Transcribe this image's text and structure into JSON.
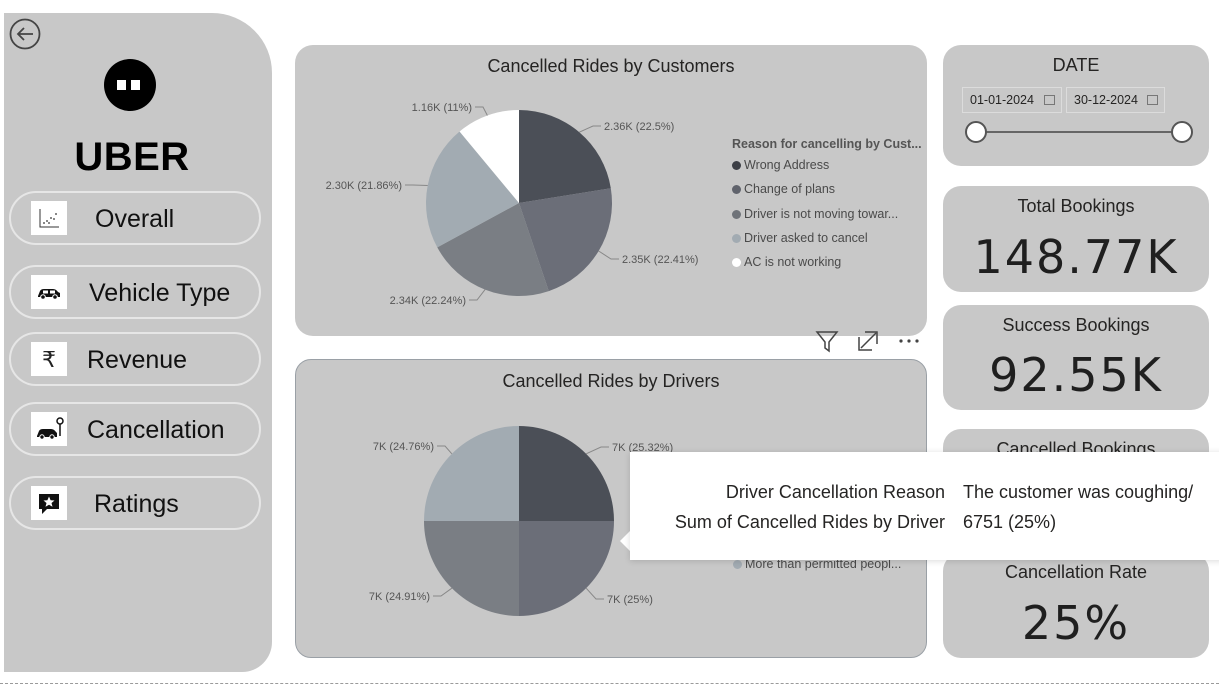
{
  "nav": {
    "items": [
      {
        "label": "Overall",
        "icon": "scatter-chart-icon"
      },
      {
        "label": "Vehicle Type",
        "icon": "car-icon"
      },
      {
        "label": "Revenue",
        "icon": "rupee-icon"
      },
      {
        "label": "Cancellation",
        "icon": "car-cancel-icon"
      },
      {
        "label": "Ratings",
        "icon": "rating-star-icon"
      }
    ],
    "brand": "UBER"
  },
  "customers_chart": {
    "title": "Cancelled Rides by Customers",
    "legend_title": "Reason for cancelling by Cust...",
    "legend": [
      "Wrong Address",
      "Change of plans",
      "Driver is not moving towar...",
      "Driver asked to cancel",
      "AC is not working"
    ],
    "labels": [
      "2.36K (22.5%)",
      "2.35K (22.41%)",
      "2.34K (22.24%)",
      "2.30K (21.86%)",
      "1.16K (11%)"
    ]
  },
  "drivers_chart": {
    "title": "Cancelled Rides by Drivers",
    "legend_visible": [
      "More than permitted peopl..."
    ],
    "labels": [
      "7K (25.32%)",
      "7K (25%)",
      "7K (24.91%)",
      "7K (24.76%)"
    ]
  },
  "chart_data": [
    {
      "type": "pie",
      "title": "Cancelled Rides by Customers",
      "legend_title": "Reason for cancelling by Cust...",
      "legend_position": "right",
      "categories": [
        "Wrong Address",
        "Change of plans",
        "Driver is not moving towar...",
        "Driver asked to cancel",
        "AC is not working"
      ],
      "values": [
        2360,
        2350,
        2340,
        2300,
        1160
      ],
      "percentages": [
        22.5,
        22.41,
        22.24,
        21.86,
        11
      ],
      "colors": [
        "#4b4f57",
        "#6b6e78",
        "#7a7e84",
        "#a2abb2",
        "#ffffff"
      ]
    },
    {
      "type": "pie",
      "title": "Cancelled Rides by Drivers",
      "legend_position": "right",
      "categories": [
        "",
        "",
        "",
        "More than permitted peopl..."
      ],
      "values": [
        7000,
        7000,
        7000,
        7000
      ],
      "percentages": [
        25.32,
        25,
        24.91,
        24.76
      ],
      "colors": [
        "#4b4f57",
        "#6b6e78",
        "#7a7e84",
        "#a2abb2"
      ]
    }
  ],
  "date_filter": {
    "title": "DATE",
    "start": "01-01-2024",
    "end": "30-12-2024"
  },
  "kpis": {
    "total": {
      "title": "Total Bookings",
      "value": "148.77K"
    },
    "success": {
      "title": "Success Bookings",
      "value": "92.55K"
    },
    "cancelled": {
      "title": "Cancelled Bookings"
    },
    "rate": {
      "title": "Cancellation Rate",
      "value": "25%"
    }
  },
  "tooltip": {
    "k1": "Driver Cancellation Reason",
    "v1": "The customer was coughing/",
    "k2": "Sum of Cancelled Rides by Driver",
    "v2": "6751 (25%)"
  },
  "visual_tools": {
    "filter": "filter-icon",
    "focus": "focus-mode-icon",
    "more": "more-options-icon"
  }
}
